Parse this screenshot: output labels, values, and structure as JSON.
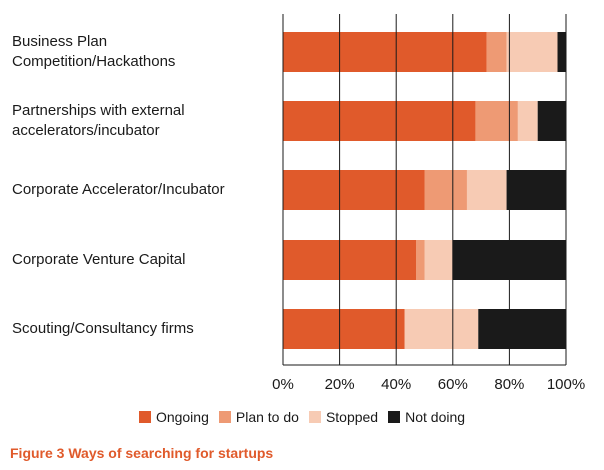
{
  "chart_data": {
    "type": "bar",
    "orientation": "horizontal",
    "stacked": true,
    "title": "Figure 3 Ways of searching for startups",
    "categories": [
      "Business Plan\nCompetition/Hackathons",
      "Partnerships with external\naccelerators/incubator",
      "Corporate Accelerator/Incubator",
      "Corporate Venture Capital",
      "Scouting/Consultancy firms"
    ],
    "series": [
      {
        "name": "Ongoing",
        "color": "#e05a2b",
        "values": [
          72,
          68,
          50,
          47,
          43
        ]
      },
      {
        "name": "Plan to do",
        "color": "#ee9a74",
        "values": [
          7,
          15,
          15,
          3,
          0
        ]
      },
      {
        "name": "Stopped",
        "color": "#f7cbb4",
        "values": [
          18,
          7,
          14,
          10,
          26
        ]
      },
      {
        "name": "Not doing",
        "color": "#1a1a1a",
        "values": [
          3,
          10,
          21,
          40,
          31
        ]
      }
    ],
    "xlim": [
      0,
      100
    ],
    "xticks": [
      "0%",
      "20%",
      "40%",
      "60%",
      "80%",
      "100%"
    ],
    "grid": true,
    "legend_position": "bottom"
  }
}
